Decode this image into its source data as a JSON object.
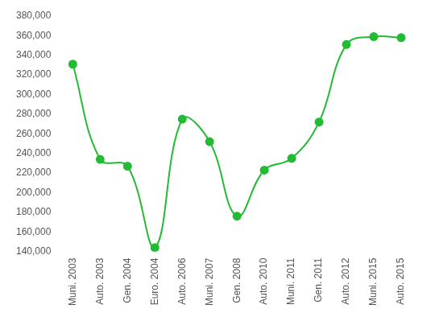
{
  "chart_data": {
    "type": "line",
    "categories": [
      "Muni. 2003",
      "Auto. 2003",
      "Gen. 2004",
      "Euro. 2004",
      "Auto. 2006",
      "Muni. 2007",
      "Gen. 2008",
      "Auto. 2010",
      "Muni. 2011",
      "Gen. 2011",
      "Auto. 2012",
      "Muni. 2015",
      "Auto. 2015"
    ],
    "values": [
      331000,
      234000,
      227000,
      144000,
      275000,
      252000,
      176000,
      223000,
      235000,
      272000,
      351000,
      359000,
      358000
    ],
    "color": "#22bb33",
    "ylim": [
      140000,
      380000
    ],
    "yticks": [
      {
        "value": 140000,
        "label": "140,000"
      },
      {
        "value": 160000,
        "label": "160,000"
      },
      {
        "value": 180000,
        "label": "180,000"
      },
      {
        "value": 200000,
        "label": "200,000"
      },
      {
        "value": 220000,
        "label": "220,000"
      },
      {
        "value": 240000,
        "label": "240,000"
      },
      {
        "value": 260000,
        "label": "260,000"
      },
      {
        "value": 280000,
        "label": "280,000"
      },
      {
        "value": 300000,
        "label": "300,000"
      },
      {
        "value": 320000,
        "label": "320,000"
      },
      {
        "value": 340000,
        "label": "340,000"
      },
      {
        "value": 360000,
        "label": "360,000"
      },
      {
        "value": 380000,
        "label": "380,000"
      }
    ],
    "grid": false,
    "marker": "circle"
  }
}
